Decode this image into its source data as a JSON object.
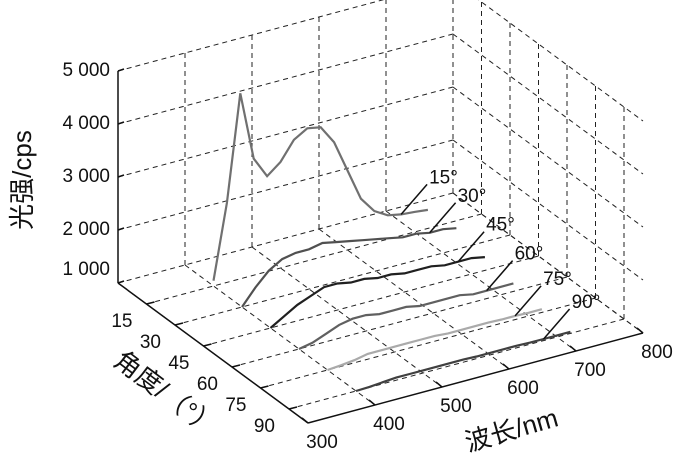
{
  "chart_data": {
    "type": "line3d",
    "xlabel": "波长/nm",
    "ylabel": "角度/（°）",
    "zlabel": "光强/cps",
    "xlim": [
      300,
      800
    ],
    "xticks": [
      300,
      400,
      500,
      600,
      700,
      800
    ],
    "ylim": [
      0,
      100
    ],
    "yticks": [
      15,
      30,
      45,
      60,
      75,
      90
    ],
    "zlim": [
      1000,
      5000
    ],
    "zticks": [
      {
        "value": 1000,
        "label": "1 000"
      },
      {
        "value": 2000,
        "label": "2 000"
      },
      {
        "value": 3000,
        "label": "3 000"
      },
      {
        "value": 4000,
        "label": "4 000"
      },
      {
        "value": 5000,
        "label": "5 000"
      }
    ],
    "grid": true,
    "x": [
      400,
      420,
      440,
      460,
      480,
      500,
      520,
      540,
      560,
      580,
      600,
      620,
      640,
      660,
      680,
      700,
      720
    ],
    "series": [
      {
        "name": "15°",
        "angle": 15,
        "color": "#707070",
        "values": [
          1100,
          2500,
          4500,
          3200,
          2800,
          3000,
          3350,
          3500,
          3450,
          3100,
          2500,
          1900,
          1600,
          1450,
          1400,
          1380,
          1350
        ]
      },
      {
        "name": "30°",
        "angle": 30,
        "color": "#505050",
        "values": [
          1000,
          1300,
          1550,
          1700,
          1750,
          1750,
          1800,
          1750,
          1700,
          1650,
          1600,
          1550,
          1500,
          1500,
          1450,
          1450,
          1400
        ]
      },
      {
        "name": "45°",
        "angle": 45,
        "color": "#202020",
        "values": [
          1000,
          1150,
          1300,
          1400,
          1500,
          1500,
          1450,
          1450,
          1400,
          1400,
          1350,
          1350,
          1350,
          1300,
          1300,
          1300,
          1250
        ]
      },
      {
        "name": "60°",
        "angle": 60,
        "color": "#606060",
        "values": [
          1000,
          1050,
          1150,
          1250,
          1300,
          1300,
          1250,
          1250,
          1250,
          1200,
          1200,
          1200,
          1200,
          1150,
          1150,
          1150,
          1150
        ]
      },
      {
        "name": "75°",
        "angle": 75,
        "color": "#aaaaaa",
        "values": [
          1000,
          1020,
          1050,
          1100,
          1100,
          1100,
          1100,
          1100,
          1100,
          1080,
          1080,
          1080,
          1080,
          1070,
          1070,
          1060,
          1060
        ]
      },
      {
        "name": "90°",
        "angle": 90,
        "color": "#404040",
        "values": [
          1000,
          1010,
          1030,
          1050,
          1050,
          1050,
          1050,
          1050,
          1050,
          1040,
          1040,
          1040,
          1040,
          1030,
          1030,
          1030,
          1030
        ]
      }
    ]
  }
}
